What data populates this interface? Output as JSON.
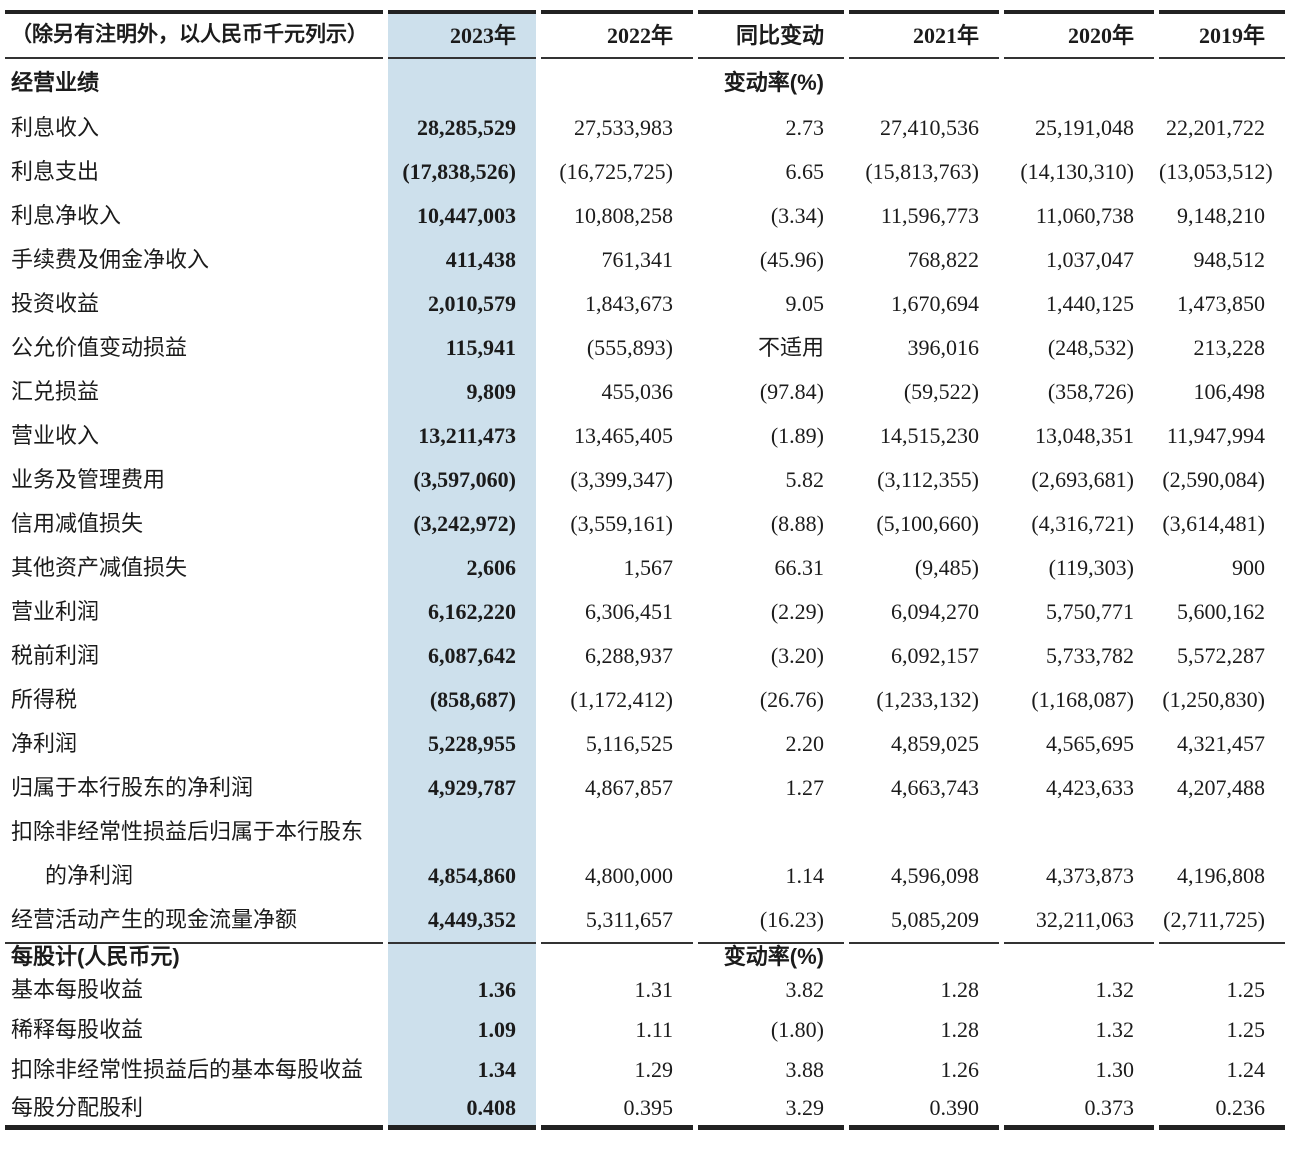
{
  "table": {
    "unit_note": "（除另有注明外，以人民币千元列示）",
    "year_headers": [
      "2023年",
      "2022年",
      "同比变动",
      "2021年",
      "2020年",
      "2019年"
    ],
    "highlight_color": "#cde0ec",
    "sections": [
      {
        "title": "经营业绩",
        "change_note": "变动率(%)",
        "rows": [
          {
            "label": "利息收入",
            "values": [
              "28,285,529",
              "27,533,983",
              "2.73",
              "27,410,536",
              "25,191,048",
              "22,201,722"
            ]
          },
          {
            "label": "利息支出",
            "values": [
              "(17,838,526)",
              "(16,725,725)",
              "6.65",
              "(15,813,763)",
              "(14,130,310)",
              "(13,053,512)"
            ]
          },
          {
            "label": "利息净收入",
            "values": [
              "10,447,003",
              "10,808,258",
              "(3.34)",
              "11,596,773",
              "11,060,738",
              "9,148,210"
            ]
          },
          {
            "label": "手续费及佣金净收入",
            "values": [
              "411,438",
              "761,341",
              "(45.96)",
              "768,822",
              "1,037,047",
              "948,512"
            ]
          },
          {
            "label": "投资收益",
            "values": [
              "2,010,579",
              "1,843,673",
              "9.05",
              "1,670,694",
              "1,440,125",
              "1,473,850"
            ]
          },
          {
            "label": "公允价值变动损益",
            "values": [
              "115,941",
              "(555,893)",
              "不适用",
              "396,016",
              "(248,532)",
              "213,228"
            ]
          },
          {
            "label": "汇兑损益",
            "values": [
              "9,809",
              "455,036",
              "(97.84)",
              "(59,522)",
              "(358,726)",
              "106,498"
            ]
          },
          {
            "label": "营业收入",
            "values": [
              "13,211,473",
              "13,465,405",
              "(1.89)",
              "14,515,230",
              "13,048,351",
              "11,947,994"
            ]
          },
          {
            "label": "业务及管理费用",
            "values": [
              "(3,597,060)",
              "(3,399,347)",
              "5.82",
              "(3,112,355)",
              "(2,693,681)",
              "(2,590,084)"
            ]
          },
          {
            "label": "信用减值损失",
            "values": [
              "(3,242,972)",
              "(3,559,161)",
              "(8.88)",
              "(5,100,660)",
              "(4,316,721)",
              "(3,614,481)"
            ]
          },
          {
            "label": "其他资产减值损失",
            "values": [
              "2,606",
              "1,567",
              "66.31",
              "(9,485)",
              "(119,303)",
              "900"
            ]
          },
          {
            "label": "营业利润",
            "values": [
              "6,162,220",
              "6,306,451",
              "(2.29)",
              "6,094,270",
              "5,750,771",
              "5,600,162"
            ]
          },
          {
            "label": "税前利润",
            "values": [
              "6,087,642",
              "6,288,937",
              "(3.20)",
              "6,092,157",
              "5,733,782",
              "5,572,287"
            ]
          },
          {
            "label": "所得税",
            "values": [
              "(858,687)",
              "(1,172,412)",
              "(26.76)",
              "(1,233,132)",
              "(1,168,087)",
              "(1,250,830)"
            ]
          },
          {
            "label": "净利润",
            "values": [
              "5,228,955",
              "5,116,525",
              "2.20",
              "4,859,025",
              "4,565,695",
              "4,321,457"
            ]
          },
          {
            "label": "归属于本行股东的净利润",
            "values": [
              "4,929,787",
              "4,867,857",
              "1.27",
              "4,663,743",
              "4,423,633",
              "4,207,488"
            ]
          },
          {
            "label": "扣除非经常性损益后归属于本行股东",
            "values": [
              "",
              "",
              "",
              "",
              "",
              ""
            ]
          },
          {
            "label": "的净利润",
            "indent": true,
            "values": [
              "4,854,860",
              "4,800,000",
              "1.14",
              "4,596,098",
              "4,373,873",
              "4,196,808"
            ]
          },
          {
            "label": "经营活动产生的现金流量净额",
            "values": [
              "4,449,352",
              "5,311,657",
              "(16.23)",
              "5,085,209",
              "32,211,063",
              "(2,711,725)"
            ]
          }
        ]
      },
      {
        "title": "每股计(人民币元)",
        "change_note": "变动率(%)",
        "rows": [
          {
            "label": "基本每股收益",
            "values": [
              "1.36",
              "1.31",
              "3.82",
              "1.28",
              "1.32",
              "1.25"
            ]
          },
          {
            "label": "稀释每股收益",
            "values": [
              "1.09",
              "1.11",
              "(1.80)",
              "1.28",
              "1.32",
              "1.25"
            ]
          },
          {
            "label": "扣除非经常性损益后的基本每股收益",
            "values": [
              "1.34",
              "1.29",
              "3.88",
              "1.26",
              "1.30",
              "1.24"
            ]
          },
          {
            "label": "每股分配股利",
            "values": [
              "0.408",
              "0.395",
              "3.29",
              "0.390",
              "0.373",
              "0.236"
            ]
          }
        ]
      }
    ]
  }
}
